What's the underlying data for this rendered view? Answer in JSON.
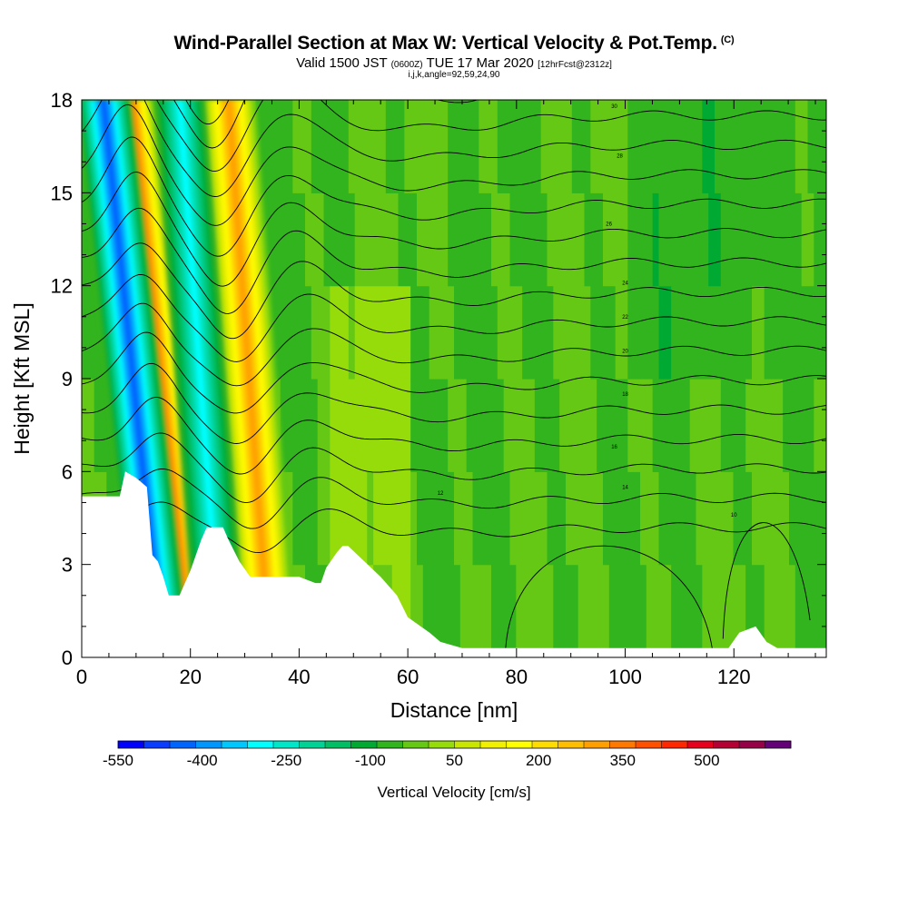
{
  "header": {
    "title": "Wind-Parallel Section at Max W: Vertical Velocity & Pot.Temp.",
    "copyright": "(C)",
    "valid_prefix": "Valid 1500 JST",
    "valid_utc": "(0600Z)",
    "valid_date": "TUE 17 Mar 2020",
    "forecast_tag": "[12hrFcst@2312z]",
    "params": "i,j,k,angle=92,59,24,90"
  },
  "chart_data": {
    "type": "heatmap",
    "title": "Wind-Parallel Section at Max W: Vertical Velocity & Pot.Temp.",
    "xlabel": "Distance [nm]",
    "ylabel": "Height [Kft MSL]",
    "xlim": [
      0,
      137
    ],
    "ylim": [
      0,
      18
    ],
    "xticks": [
      0,
      20,
      40,
      60,
      80,
      100,
      120
    ],
    "yticks": [
      0,
      3,
      6,
      9,
      12,
      15,
      18
    ],
    "colorbar": {
      "label": "Vertical Velocity [cm/s]",
      "range": [
        -550,
        650
      ],
      "step": 50,
      "tick_labels": [
        "-550",
        "-400",
        "-250",
        "-100",
        "50",
        "200",
        "350",
        "500"
      ],
      "colors": [
        "#0000ff",
        "#0a3cff",
        "#0064ff",
        "#0096ff",
        "#00c8ff",
        "#00ffff",
        "#00e6c8",
        "#00d296",
        "#00be64",
        "#00aa32",
        "#32b41e",
        "#64c814",
        "#96dc0a",
        "#c8e600",
        "#f0f000",
        "#ffff00",
        "#ffdc00",
        "#ffbe00",
        "#ffa000",
        "#ff7800",
        "#ff5000",
        "#ff2800",
        "#e6001e",
        "#b40032",
        "#960046",
        "#640078"
      ]
    },
    "terrain_kft": [
      [
        0,
        5.2
      ],
      [
        7,
        5.2
      ],
      [
        8,
        6.0
      ],
      [
        10,
        5.8
      ],
      [
        12,
        5.5
      ],
      [
        13,
        3.3
      ],
      [
        14,
        3.1
      ],
      [
        15,
        2.6
      ],
      [
        16,
        2.0
      ],
      [
        18,
        2.0
      ],
      [
        19,
        2.4
      ],
      [
        20,
        2.8
      ],
      [
        21,
        3.3
      ],
      [
        22,
        3.8
      ],
      [
        23,
        4.2
      ],
      [
        26,
        4.2
      ],
      [
        27,
        3.8
      ],
      [
        29,
        3.1
      ],
      [
        31,
        2.6
      ],
      [
        40,
        2.6
      ],
      [
        43,
        2.4
      ],
      [
        44,
        2.4
      ],
      [
        45,
        2.9
      ],
      [
        47,
        3.4
      ],
      [
        48,
        3.6
      ],
      [
        49,
        3.6
      ],
      [
        55,
        2.6
      ],
      [
        58,
        2.0
      ],
      [
        60,
        1.3
      ],
      [
        64,
        0.8
      ],
      [
        66,
        0.5
      ],
      [
        70,
        0.3
      ],
      [
        119,
        0.3
      ],
      [
        121,
        0.8
      ],
      [
        124,
        1.0
      ],
      [
        126,
        0.5
      ],
      [
        128,
        0.3
      ],
      [
        137,
        0.3
      ]
    ],
    "theta_contour_labels": [
      "30",
      "28",
      "26",
      "24",
      "22",
      "20",
      "18",
      "16",
      "14",
      "12",
      "10"
    ],
    "updraft_bands": [
      {
        "x_base": 18,
        "x_top": 8,
        "w_peak": 550
      },
      {
        "x_base": 34,
        "x_top": 27,
        "w_peak": 400
      }
    ],
    "downdraft_bands": [
      {
        "x_base": 14,
        "x_top": 4,
        "w_peak": -450
      },
      {
        "x_base": 25,
        "x_top": 18,
        "w_peak": -300
      }
    ]
  }
}
